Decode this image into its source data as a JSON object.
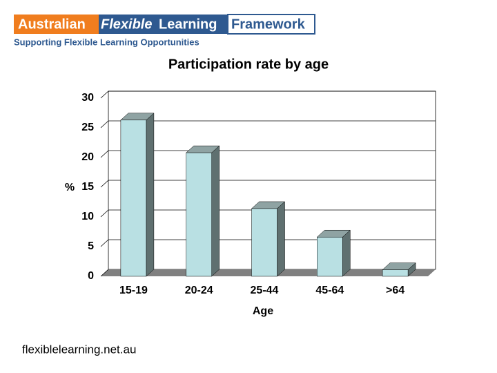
{
  "header": {
    "logo": [
      "Australian",
      "Flexible",
      "Learning",
      "Framework"
    ],
    "tagline": "Supporting Flexible Learning Opportunities"
  },
  "footer": {
    "url": "flexiblelearning.net.au"
  },
  "chart_data": {
    "type": "bar",
    "title": "Participation rate by age",
    "y_label": "%",
    "x_label": "Age",
    "categories": [
      "15-19",
      "20-24",
      "25-44",
      "45-64",
      ">64"
    ],
    "values": [
      26.3,
      20.8,
      11.4,
      6.6,
      1.1
    ],
    "color": "#b9e0e3",
    "ylim": [
      0,
      30
    ],
    "yticks": [
      0,
      5,
      10,
      15,
      20,
      25,
      30
    ],
    "grid": true
  }
}
